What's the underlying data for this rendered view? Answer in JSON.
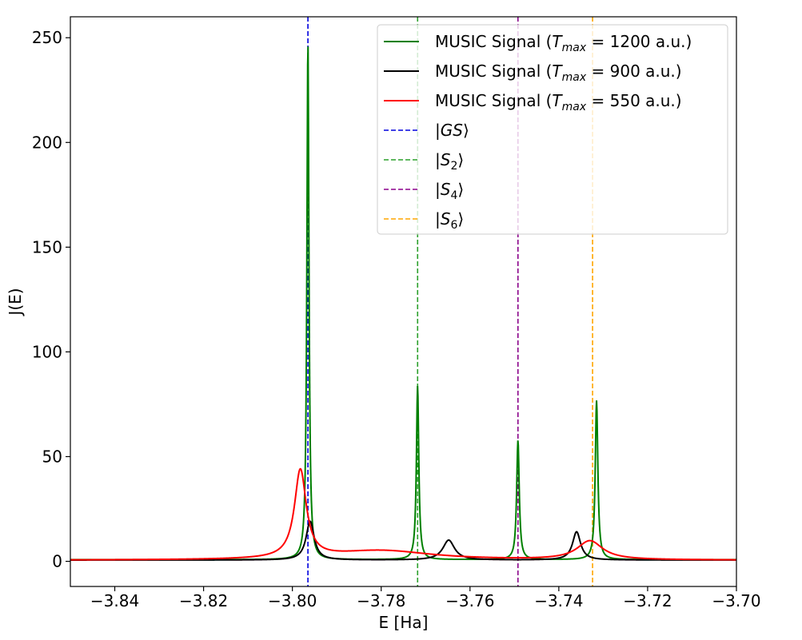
{
  "chart_data": {
    "type": "line",
    "xlabel": "E [Ha]",
    "ylabel": "J(E)",
    "xlim": [
      -3.85,
      -3.7
    ],
    "ylim": [
      -12,
      260
    ],
    "x_ticks": [
      -3.84,
      -3.82,
      -3.8,
      -3.78,
      -3.76,
      -3.74,
      -3.72,
      -3.7
    ],
    "x_tick_labels": [
      "−3.84",
      "−3.82",
      "−3.80",
      "−3.78",
      "−3.76",
      "−3.74",
      "−3.72",
      "−3.70"
    ],
    "y_ticks": [
      0,
      50,
      100,
      150,
      200,
      250
    ],
    "y_tick_labels": [
      "0",
      "50",
      "100",
      "150",
      "200",
      "250"
    ],
    "grid": false,
    "legend_placement": "top-right",
    "series": [
      {
        "name": "MUSIC Signal (Tmax = 1200 a.u.)",
        "legend_prefix": "MUSIC Signal (",
        "legend_var": "T",
        "legend_sub": "max",
        "legend_suffix": " = 1200 a.u.)",
        "color": "#008000",
        "style": "solid",
        "baseline": 0.8,
        "peaks": [
          {
            "center": -3.7965,
            "height": 248,
            "width": 0.00028
          },
          {
            "center": -3.7718,
            "height": 83,
            "width": 0.00032
          },
          {
            "center": -3.7492,
            "height": 57,
            "width": 0.00035
          },
          {
            "center": -3.7315,
            "height": 76,
            "width": 0.00035
          }
        ]
      },
      {
        "name": "MUSIC Signal (Tmax = 900 a.u.)",
        "legend_prefix": "MUSIC Signal (",
        "legend_var": "T",
        "legend_sub": "max",
        "legend_suffix": " = 900 a.u.)",
        "color": "#000000",
        "style": "solid",
        "baseline": 0.6,
        "peaks": [
          {
            "center": -3.796,
            "height": 18.5,
            "width": 0.0011
          },
          {
            "center": -3.7648,
            "height": 9.5,
            "width": 0.0016
          },
          {
            "center": -3.736,
            "height": 13.5,
            "width": 0.0011
          }
        ]
      },
      {
        "name": "MUSIC Signal (Tmax = 550 a.u.)",
        "legend_prefix": "MUSIC Signal (",
        "legend_var": "T",
        "legend_sub": "max",
        "legend_suffix": " = 550 a.u.)",
        "color": "#ff0000",
        "style": "solid",
        "baseline": 0.5,
        "peaks": [
          {
            "center": -3.7982,
            "height": 42,
            "width": 0.0016
          },
          {
            "center": -3.78,
            "height": 4.5,
            "width": 0.014
          },
          {
            "center": -3.733,
            "height": 9.0,
            "width": 0.0035
          }
        ]
      }
    ],
    "vlines": [
      {
        "name": "|GS⟩",
        "label_main": "GS",
        "label_sub": "",
        "x": -3.7965,
        "color": "#0000dd"
      },
      {
        "name": "|S2⟩",
        "label_main": "S",
        "label_sub": "2",
        "x": -3.7718,
        "color": "#2ca02c"
      },
      {
        "name": "|S4⟩",
        "label_main": "S",
        "label_sub": "4",
        "x": -3.7492,
        "color": "#8b008b"
      },
      {
        "name": "|S6⟩",
        "label_main": "S",
        "label_sub": "6",
        "x": -3.7324,
        "color": "#ffa500"
      }
    ]
  }
}
